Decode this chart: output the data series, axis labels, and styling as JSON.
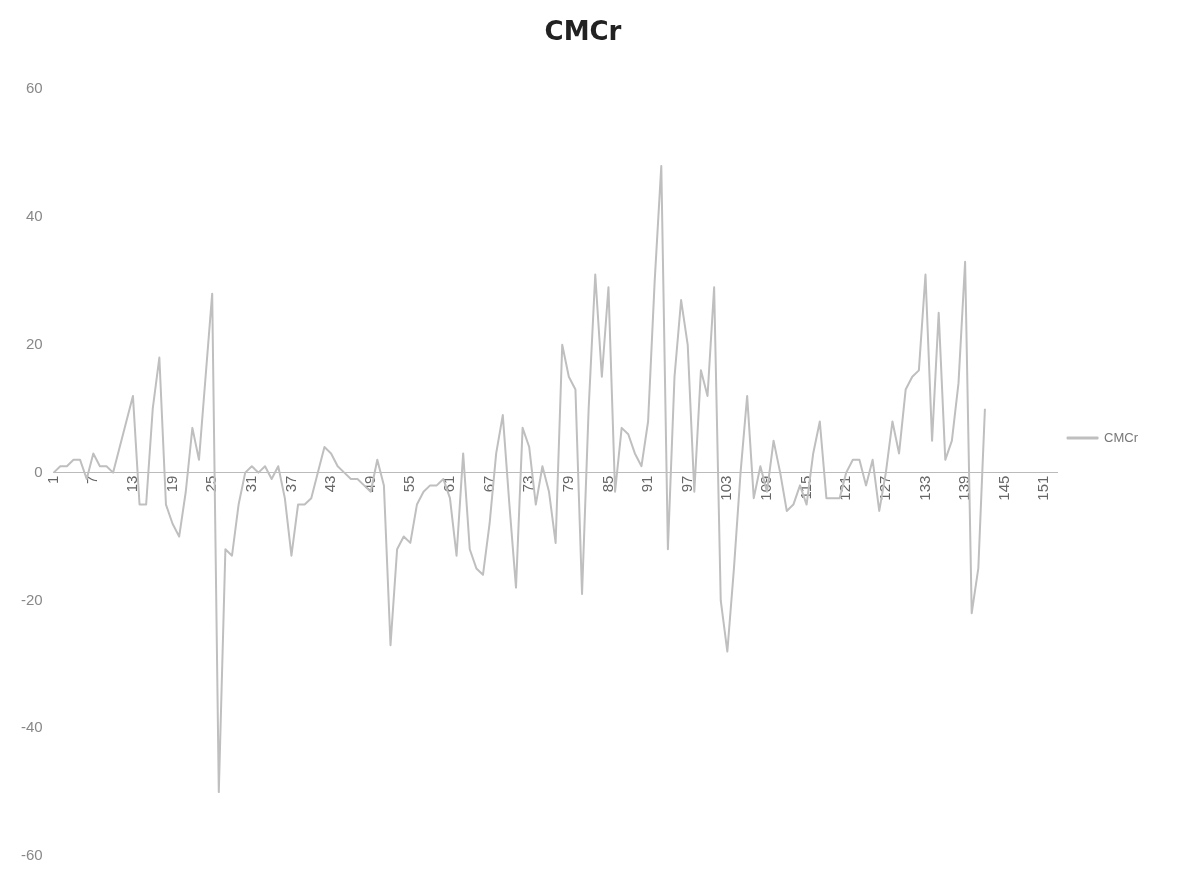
{
  "chart_data": {
    "type": "line",
    "title": "CMCr",
    "categories": [
      "1",
      null,
      null,
      null,
      null,
      null,
      "7",
      null,
      null,
      null,
      null,
      null,
      "13",
      null,
      null,
      null,
      null,
      null,
      "19",
      null,
      null,
      null,
      null,
      null,
      "25",
      null,
      null,
      null,
      null,
      null,
      "31",
      null,
      null,
      null,
      null,
      null,
      "37",
      null,
      null,
      null,
      null,
      null,
      "43",
      null,
      null,
      null,
      null,
      null,
      "49",
      null,
      null,
      null,
      null,
      null,
      "55",
      null,
      null,
      null,
      null,
      null,
      "61",
      null,
      null,
      null,
      null,
      null,
      "67",
      null,
      null,
      null,
      null,
      null,
      "73",
      null,
      null,
      null,
      null,
      null,
      "79",
      null,
      null,
      null,
      null,
      null,
      "85",
      null,
      null,
      null,
      null,
      null,
      "91",
      null,
      null,
      null,
      null,
      null,
      "97",
      null,
      null,
      null,
      null,
      null,
      "103",
      null,
      null,
      null,
      null,
      null,
      "109",
      null,
      null,
      null,
      null,
      null,
      "115",
      null,
      null,
      null,
      null,
      null,
      "121",
      null,
      null,
      null,
      null,
      null,
      "127",
      null,
      null,
      null,
      null,
      null,
      "133",
      null,
      null,
      null,
      null,
      null,
      "139",
      null,
      null,
      null,
      null,
      null,
      "145",
      null,
      null,
      null,
      null,
      null,
      "151",
      null,
      null
    ],
    "series": [
      {
        "name": "CMCr",
        "color": "#bfbfbf",
        "values": [
          0,
          1,
          1,
          2,
          2,
          -1,
          3,
          1,
          1,
          0,
          4,
          8,
          12,
          -5,
          -5,
          10,
          18,
          -5,
          -8,
          -10,
          -3,
          7,
          2,
          15,
          28,
          -50,
          -12,
          -13,
          -5,
          0,
          1,
          0,
          1,
          -1,
          1,
          -4,
          -13,
          -5,
          -5,
          -4,
          0,
          4,
          3,
          1,
          0,
          -1,
          -1,
          -2,
          -3,
          2,
          -2,
          -27,
          -12,
          -10,
          -11,
          -5,
          -3,
          -2,
          -2,
          -1,
          -4,
          -13,
          3,
          -12,
          -15,
          -16,
          -8,
          3,
          9,
          -5,
          -18,
          7,
          4,
          -5,
          1,
          -3,
          -11,
          20,
          15,
          13,
          -19,
          10,
          31,
          15,
          29,
          -3,
          7,
          6,
          3,
          1,
          8,
          30,
          48,
          -12,
          15,
          27,
          20,
          -3,
          16,
          12,
          29,
          -20,
          -28,
          -15,
          0,
          12,
          -4,
          1,
          -3,
          5,
          0,
          -6,
          -5,
          -2,
          -5,
          3,
          8,
          -4,
          -4,
          -4,
          0,
          2,
          2,
          -2,
          2,
          -6,
          0,
          8,
          3,
          13,
          15,
          16,
          31,
          5,
          25,
          2,
          5,
          14,
          33,
          -22,
          -15,
          10,
          null,
          null,
          null,
          null,
          null,
          null,
          null,
          null,
          null,
          null,
          null
        ]
      }
    ],
    "ylim": [
      -60,
      60
    ],
    "yticks": [
      -60,
      -40,
      -20,
      0,
      20,
      40,
      60
    ],
    "legend": "right",
    "marker": "none",
    "line_style": "solid"
  }
}
